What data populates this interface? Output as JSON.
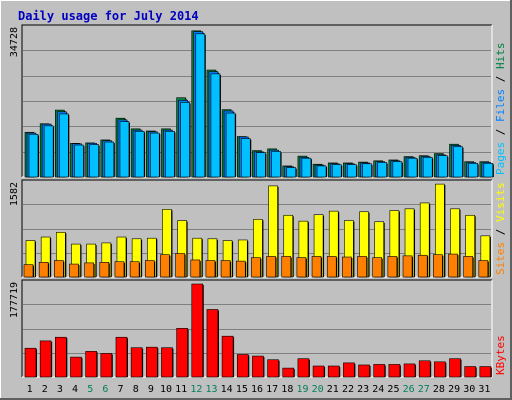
{
  "chart_data": [
    {
      "type": "bar",
      "title": "Daily usage for July 2014",
      "panel": "top",
      "ylabel_parts": [
        "Pages",
        "Files",
        "Hits"
      ],
      "ytick_max_label": "34728",
      "ylim": [
        0,
        34728
      ],
      "categories": [
        "1",
        "2",
        "3",
        "4",
        "5",
        "6",
        "7",
        "8",
        "9",
        "10",
        "11",
        "12",
        "13",
        "14",
        "15",
        "16",
        "17",
        "18",
        "19",
        "20",
        "21",
        "22",
        "23",
        "24",
        "25",
        "26",
        "27",
        "28",
        "29",
        "30",
        "31"
      ],
      "series": [
        {
          "name": "Hits",
          "color": "#008040",
          "values": [
            10500,
            12500,
            15700,
            7900,
            8000,
            8700,
            13800,
            11300,
            10800,
            11300,
            18600,
            34300,
            25100,
            15800,
            9500,
            6200,
            6600,
            2600,
            4900,
            3000,
            3300,
            3300,
            3500,
            3800,
            4000,
            4800,
            5000,
            5500,
            7700,
            3600,
            3600
          ]
        },
        {
          "name": "Files",
          "color": "#0080ff",
          "values": [
            10300,
            12400,
            15300,
            7800,
            7900,
            8500,
            13400,
            11000,
            10600,
            11000,
            18000,
            34100,
            24700,
            15500,
            9400,
            5900,
            6300,
            2400,
            4600,
            2800,
            3100,
            3100,
            3300,
            3600,
            3800,
            4600,
            4800,
            5200,
            7400,
            3400,
            3400
          ]
        },
        {
          "name": "Pages",
          "color": "#00c0ff",
          "values": [
            10000,
            12000,
            14800,
            7500,
            7600,
            8200,
            13000,
            10700,
            10300,
            10700,
            17500,
            33600,
            24200,
            15000,
            9000,
            5700,
            6000,
            2200,
            4400,
            2600,
            2900,
            2900,
            3100,
            3400,
            3600,
            4400,
            4600,
            5000,
            7100,
            3200,
            3200
          ]
        }
      ],
      "x_highlight": {
        "weekend_days": [
          "5",
          "6",
          "12",
          "13",
          "19",
          "20",
          "26",
          "27"
        ],
        "weekend_color": "#00805c",
        "weekday_color": "#000000"
      }
    },
    {
      "type": "bar",
      "panel": "middle",
      "ylabel_parts": [
        "Sites",
        "Visits"
      ],
      "ytick_max_label": "1582",
      "ylim": [
        0,
        1582
      ],
      "categories": [
        "1",
        "2",
        "3",
        "4",
        "5",
        "6",
        "7",
        "8",
        "9",
        "10",
        "11",
        "12",
        "13",
        "14",
        "15",
        "16",
        "17",
        "18",
        "19",
        "20",
        "21",
        "22",
        "23",
        "24",
        "25",
        "26",
        "27",
        "28",
        "29",
        "30",
        "31"
      ],
      "series": [
        {
          "name": "Visits",
          "color": "#ffff00",
          "values": [
            620,
            680,
            760,
            560,
            560,
            580,
            680,
            650,
            660,
            1150,
            960,
            660,
            650,
            620,
            630,
            980,
            1550,
            1050,
            950,
            1060,
            1120,
            960,
            1110,
            940,
            1130,
            1160,
            1260,
            1580,
            1160,
            1050,
            700
          ]
        },
        {
          "name": "Sites",
          "color": "#ff8000",
          "values": [
            210,
            250,
            280,
            220,
            240,
            250,
            260,
            260,
            280,
            380,
            400,
            290,
            280,
            280,
            270,
            330,
            350,
            350,
            330,
            350,
            350,
            340,
            350,
            330,
            350,
            360,
            370,
            380,
            390,
            350,
            280
          ]
        }
      ]
    },
    {
      "type": "bar",
      "panel": "bottom",
      "ylabel_parts": [
        "KBytes"
      ],
      "ytick_max_label": "177719",
      "ylim": [
        0,
        177719
      ],
      "categories": [
        "1",
        "2",
        "3",
        "4",
        "5",
        "6",
        "7",
        "8",
        "9",
        "10",
        "11",
        "12",
        "13",
        "14",
        "15",
        "16",
        "17",
        "18",
        "19",
        "20",
        "21",
        "22",
        "23",
        "24",
        "25",
        "26",
        "27",
        "28",
        "29",
        "30",
        "31"
      ],
      "series": [
        {
          "name": "KBytes",
          "color": "#ff0000",
          "values": [
            55000,
            69000,
            76000,
            38000,
            49000,
            45000,
            76000,
            56000,
            57000,
            56000,
            93000,
            177700,
            129000,
            78000,
            43000,
            40000,
            33000,
            17000,
            35000,
            21000,
            21000,
            27000,
            23000,
            24000,
            24000,
            25000,
            31000,
            29000,
            35000,
            20000,
            20000
          ]
        }
      ]
    }
  ]
}
